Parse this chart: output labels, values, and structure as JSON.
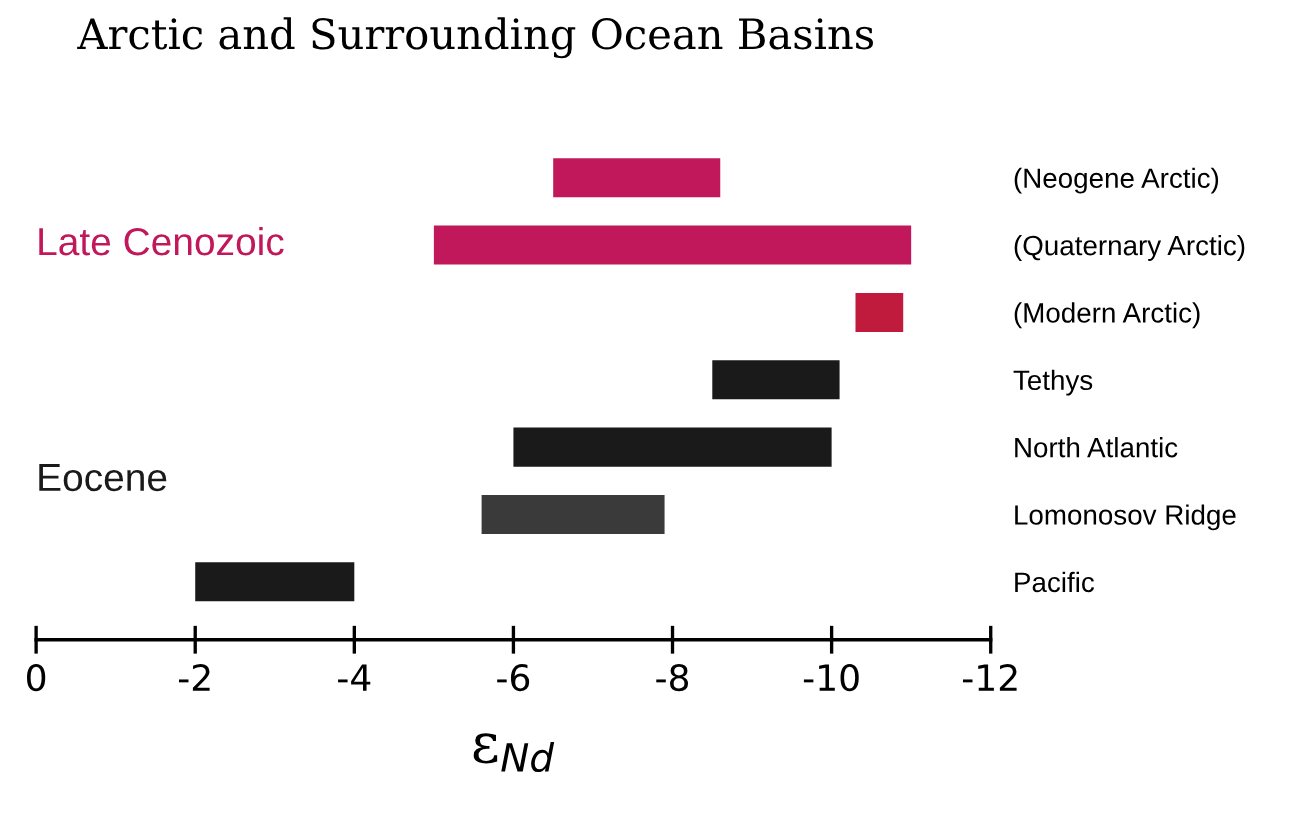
{
  "chart_data": {
    "type": "bar",
    "orientation": "horizontal",
    "title": "Arctic and Surrounding Ocean Basins",
    "xlabel": "ε$_{Nd}$",
    "categories": [
      "(Neogene Arctic)",
      "(Quaternary Arctic)",
      "(Modern Arctic)",
      "Tethys",
      "North Atlantic",
      "Lomonosov Ridge",
      "Pacific"
    ],
    "series": [
      {
        "name": "Late Cenozoic",
        "color": "#c0185a",
        "colors": [
          "#c0185a",
          "#c0185a",
          "#c01a3c",
          null,
          null,
          null,
          null
        ],
        "base": [
          -6.5,
          -5,
          -10.3,
          null,
          null,
          null,
          null
        ],
        "values": [
          -2.1,
          -6,
          -0.6,
          null,
          null,
          null,
          null
        ]
      },
      {
        "name": "Eocene",
        "color": "#1a1a1a",
        "colors": [
          null,
          null,
          null,
          "#1a1a1a",
          "#1a1a1a",
          "#3a3a3a",
          "#1a1a1a"
        ],
        "base": [
          null,
          null,
          null,
          -8.5,
          -6,
          -5.6,
          -2
        ],
        "values": [
          null,
          null,
          null,
          -1.6,
          -4,
          -2.3,
          -2
        ]
      }
    ],
    "xlim": [
      0,
      -12
    ],
    "xticks": [
      0,
      -2,
      -4,
      -6,
      -8,
      -10,
      -12
    ],
    "grid": false,
    "legend": false
  }
}
